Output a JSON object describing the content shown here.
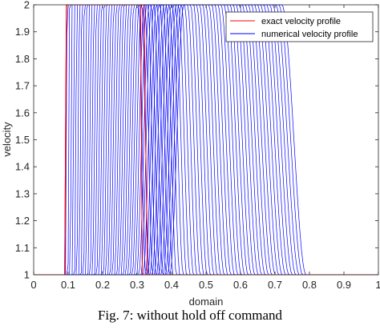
{
  "caption": "Fig. 7: without hold off command",
  "colors": {
    "exact": "#ff0000",
    "numerical": "#0000ff",
    "axis": "#262626"
  },
  "chart_data": {
    "type": "line",
    "title": "",
    "xlabel": "domain",
    "ylabel": "velocity",
    "xlim": [
      0,
      1
    ],
    "ylim": [
      1,
      2
    ],
    "x_ticks": [
      "0",
      "0.1",
      "0.2",
      "0.3",
      "0.4",
      "0.5",
      "0.6",
      "0.7",
      "0.8",
      "0.9",
      "1"
    ],
    "y_ticks": [
      "1",
      "1.1",
      "1.2",
      "1.3",
      "1.4",
      "1.5",
      "1.6",
      "1.7",
      "1.8",
      "1.9",
      "2"
    ],
    "grid": false,
    "legend_position": "top-right",
    "series": [
      {
        "name": "exact velocity profile",
        "color": "#ff0000",
        "profiles": [
          {
            "x": [
              0,
              0.09,
              0.095,
              0.31,
              0.315,
              1
            ],
            "y": [
              1,
              1,
              2,
              2,
              1,
              1
            ]
          },
          {
            "x": [
              0,
              0.09,
              0.095,
              0.32,
              0.33,
              0.8,
              1
            ],
            "y": [
              1,
              1,
              2,
              2,
              1,
              1,
              1
            ]
          }
        ]
      },
      {
        "name": "numerical velocity profile",
        "color": "#0000ff",
        "description_values": {
          "count": 48,
          "left_edge_center_start": 0.095,
          "left_edge_center_end": 0.415,
          "right_edge_center_start": 0.315,
          "right_edge_center_end": 0.755,
          "left_edge_width_start": 0.002,
          "left_edge_width_end": 0.02,
          "right_edge_width_start": 0.01,
          "right_edge_width_end": 0.035
        }
      }
    ]
  }
}
